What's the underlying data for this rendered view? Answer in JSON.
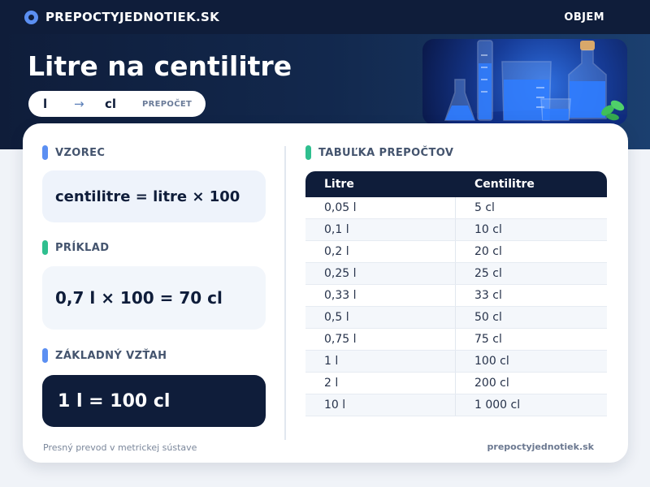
{
  "topbar": {
    "brand": "PREPOCTYJEDNOTIEK.SK",
    "nav_item": "OBJEM"
  },
  "hero": {
    "title": "Litre na centilitre",
    "from_unit": "l",
    "arrow": "→",
    "to_unit": "cl",
    "convert_label": "PREPOČET",
    "image_icon": "laboratory-glassware-image"
  },
  "formula": {
    "title": "VZOREC",
    "expression": "centilitre = litre × 100",
    "accent": "#5b8ff2"
  },
  "example": {
    "title": "PRÍKLAD",
    "expression": "0,7 l × 100 = 70 cl",
    "accent": "#2fbf8f"
  },
  "relation": {
    "title": "ZÁKLADNÝ VZŤAH",
    "expression": "1 l = 100 cl",
    "accent": "#5b8ff2"
  },
  "table": {
    "title": "TABUĽKA PREPOČTOV",
    "accent": "#2fbf8f",
    "headers": [
      "Litre",
      "Centilitre"
    ],
    "rows": [
      [
        "0,05 l",
        "5 cl"
      ],
      [
        "0,1 l",
        "10 cl"
      ],
      [
        "0,2 l",
        "20 cl"
      ],
      [
        "0,25 l",
        "25 cl"
      ],
      [
        "0,33 l",
        "33 cl"
      ],
      [
        "0,5 l",
        "50 cl"
      ],
      [
        "0,75 l",
        "75 cl"
      ],
      [
        "1 l",
        "100 cl"
      ],
      [
        "2 l",
        "200 cl"
      ],
      [
        "10 l",
        "1 000 cl"
      ]
    ]
  },
  "footer": {
    "left": "Presný prevod v metrickej sústave",
    "right": "prepoctyjednotiek.sk"
  },
  "colors": {
    "navy": "#0f1d3a",
    "brand_blue": "#5b8ff2",
    "green": "#2fbf8f"
  }
}
